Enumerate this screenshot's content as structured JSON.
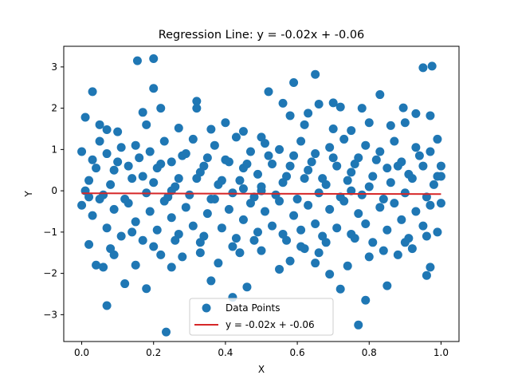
{
  "chart_data": {
    "type": "scatter",
    "title": "Regression Line: y = -0.02x + -0.06",
    "xlabel": "X",
    "ylabel": "Y",
    "xlim": [
      -0.05,
      1.05
    ],
    "ylim": [
      -3.65,
      3.5
    ],
    "xticks": [
      0.0,
      0.2,
      0.4,
      0.6,
      0.8,
      1.0
    ],
    "xtick_labels": [
      "0.0",
      "0.2",
      "0.4",
      "0.6",
      "0.8",
      "1.0"
    ],
    "yticks": [
      -3,
      -2,
      -1,
      0,
      1,
      2,
      3
    ],
    "ytick_labels": [
      "−3",
      "−2",
      "−1",
      "0",
      "1",
      "2",
      "3"
    ],
    "legend": {
      "placement": "lower-center",
      "entries": [
        "Data Points",
        "y = -0.02x + -0.06"
      ]
    },
    "grid": false,
    "series": [
      {
        "name": "Data Points",
        "kind": "scatter",
        "color": "#1f77b4",
        "points": [
          [
            0.155,
            3.15
          ],
          [
            0.2,
            3.2
          ],
          [
            0.03,
            2.4
          ],
          [
            0.2,
            2.48
          ],
          [
            0.32,
            2.17
          ],
          [
            0.65,
            2.82
          ],
          [
            0.95,
            2.98
          ],
          [
            0.975,
            3.02
          ],
          [
            0.52,
            2.4
          ],
          [
            0.56,
            2.12
          ],
          [
            0.59,
            2.62
          ],
          [
            0.7,
            2.13
          ],
          [
            0.78,
            2.0
          ],
          [
            0.83,
            2.33
          ],
          [
            0.895,
            2.01
          ],
          [
            0.72,
            2.03
          ],
          [
            0.01,
            1.78
          ],
          [
            0.05,
            1.6
          ],
          [
            0.07,
            1.48
          ],
          [
            0.1,
            1.43
          ],
          [
            0.17,
            1.9
          ],
          [
            0.18,
            1.6
          ],
          [
            0.22,
            2.0
          ],
          [
            0.27,
            1.52
          ],
          [
            0.32,
            2.0
          ],
          [
            0.36,
            1.49
          ],
          [
            0.4,
            1.65
          ],
          [
            0.45,
            1.44
          ],
          [
            0.5,
            1.3
          ],
          [
            0.58,
            1.82
          ],
          [
            0.62,
            1.6
          ],
          [
            0.66,
            2.1
          ],
          [
            0.7,
            1.5
          ],
          [
            0.75,
            1.46
          ],
          [
            0.8,
            1.65
          ],
          [
            0.86,
            1.58
          ],
          [
            0.9,
            1.65
          ],
          [
            0.93,
            1.87
          ],
          [
            0.97,
            1.82
          ],
          [
            0.63,
            1.88
          ],
          [
            0.235,
            -3.42
          ],
          [
            0.77,
            -3.25
          ],
          [
            0.07,
            -2.78
          ],
          [
            0.79,
            -2.65
          ],
          [
            0.42,
            -2.58
          ],
          [
            0.12,
            -2.25
          ],
          [
            0.18,
            -2.37
          ],
          [
            0.36,
            -2.18
          ],
          [
            0.46,
            -2.33
          ],
          [
            0.72,
            -2.38
          ],
          [
            0.85,
            -2.3
          ],
          [
            0.96,
            -2.05
          ],
          [
            0.69,
            -2.02
          ],
          [
            0.55,
            -1.9
          ],
          [
            0.02,
            -1.3
          ],
          [
            0.04,
            -1.8
          ],
          [
            0.06,
            -1.85
          ],
          [
            0.09,
            -1.55
          ],
          [
            0.15,
            -1.8
          ],
          [
            0.22,
            -1.55
          ],
          [
            0.25,
            -1.85
          ],
          [
            0.28,
            -1.6
          ],
          [
            0.33,
            -1.5
          ],
          [
            0.38,
            -1.75
          ],
          [
            0.44,
            -1.5
          ],
          [
            0.5,
            -1.45
          ],
          [
            0.58,
            -1.7
          ],
          [
            0.61,
            -1.35
          ],
          [
            0.66,
            -1.5
          ],
          [
            0.74,
            -1.82
          ],
          [
            0.8,
            -1.6
          ],
          [
            0.88,
            -1.55
          ],
          [
            0.92,
            -1.4
          ],
          [
            0.97,
            -1.85
          ],
          [
            0.65,
            -1.75
          ],
          [
            0.0,
            0.95
          ],
          [
            0.03,
            0.75
          ],
          [
            0.05,
            1.2
          ],
          [
            0.07,
            0.9
          ],
          [
            0.09,
            0.5
          ],
          [
            0.11,
            1.05
          ],
          [
            0.13,
            0.6
          ],
          [
            0.15,
            1.1
          ],
          [
            0.17,
            0.35
          ],
          [
            0.19,
            0.95
          ],
          [
            0.21,
            0.55
          ],
          [
            0.23,
            1.2
          ],
          [
            0.25,
            0.7
          ],
          [
            0.27,
            0.3
          ],
          [
            0.29,
            0.9
          ],
          [
            0.31,
            1.25
          ],
          [
            0.33,
            0.45
          ],
          [
            0.35,
            0.8
          ],
          [
            0.37,
            1.1
          ],
          [
            0.39,
            0.25
          ],
          [
            0.41,
            0.7
          ],
          [
            0.43,
            1.3
          ],
          [
            0.45,
            0.55
          ],
          [
            0.47,
            0.95
          ],
          [
            0.49,
            0.4
          ],
          [
            0.51,
            1.15
          ],
          [
            0.53,
            0.65
          ],
          [
            0.55,
            1.0
          ],
          [
            0.57,
            0.35
          ],
          [
            0.59,
            0.85
          ],
          [
            0.61,
            1.2
          ],
          [
            0.63,
            0.5
          ],
          [
            0.65,
            0.9
          ],
          [
            0.67,
            0.3
          ],
          [
            0.69,
            1.05
          ],
          [
            0.71,
            0.6
          ],
          [
            0.73,
            1.25
          ],
          [
            0.75,
            0.45
          ],
          [
            0.77,
            0.8
          ],
          [
            0.79,
            1.1
          ],
          [
            0.81,
            0.35
          ],
          [
            0.83,
            0.95
          ],
          [
            0.85,
            0.55
          ],
          [
            0.87,
            1.2
          ],
          [
            0.89,
            0.7
          ],
          [
            0.91,
            0.4
          ],
          [
            0.93,
            1.05
          ],
          [
            0.95,
            0.6
          ],
          [
            0.97,
            0.95
          ],
          [
            0.99,
            0.35
          ],
          [
            0.02,
            0.25
          ],
          [
            0.08,
            0.15
          ],
          [
            0.14,
            0.3
          ],
          [
            0.2,
            0.2
          ],
          [
            0.26,
            0.1
          ],
          [
            0.32,
            0.3
          ],
          [
            0.38,
            0.15
          ],
          [
            0.44,
            0.25
          ],
          [
            0.5,
            0.1
          ],
          [
            0.56,
            0.2
          ],
          [
            0.62,
            0.3
          ],
          [
            0.68,
            0.15
          ],
          [
            0.74,
            0.25
          ],
          [
            0.8,
            0.1
          ],
          [
            0.86,
            0.2
          ],
          [
            0.92,
            0.3
          ],
          [
            0.98,
            0.15
          ],
          [
            0.04,
            0.55
          ],
          [
            0.1,
            0.7
          ],
          [
            0.16,
            0.8
          ],
          [
            0.22,
            0.65
          ],
          [
            0.28,
            0.85
          ],
          [
            0.34,
            0.6
          ],
          [
            0.4,
            0.75
          ],
          [
            0.46,
            0.65
          ],
          [
            0.52,
            0.85
          ],
          [
            0.58,
            0.6
          ],
          [
            0.64,
            0.7
          ],
          [
            0.7,
            0.8
          ],
          [
            0.76,
            0.65
          ],
          [
            0.82,
            0.75
          ],
          [
            0.88,
            0.6
          ],
          [
            0.94,
            0.85
          ],
          [
            0.0,
            -0.35
          ],
          [
            0.03,
            -0.6
          ],
          [
            0.05,
            -0.2
          ],
          [
            0.07,
            -0.9
          ],
          [
            0.09,
            -0.45
          ],
          [
            0.11,
            -1.1
          ],
          [
            0.13,
            -0.3
          ],
          [
            0.15,
            -0.75
          ],
          [
            0.17,
            -1.2
          ],
          [
            0.19,
            -0.5
          ],
          [
            0.21,
            -0.95
          ],
          [
            0.23,
            -0.25
          ],
          [
            0.25,
            -0.65
          ],
          [
            0.27,
            -1.05
          ],
          [
            0.29,
            -0.4
          ],
          [
            0.31,
            -0.85
          ],
          [
            0.33,
            -1.25
          ],
          [
            0.35,
            -0.55
          ],
          [
            0.37,
            -0.2
          ],
          [
            0.39,
            -0.9
          ],
          [
            0.41,
            -0.45
          ],
          [
            0.43,
            -1.15
          ],
          [
            0.45,
            -0.7
          ],
          [
            0.47,
            -0.3
          ],
          [
            0.49,
            -1.0
          ],
          [
            0.51,
            -0.5
          ],
          [
            0.53,
            -0.85
          ],
          [
            0.55,
            -0.25
          ],
          [
            0.57,
            -1.2
          ],
          [
            0.59,
            -0.6
          ],
          [
            0.61,
            -0.95
          ],
          [
            0.63,
            -0.35
          ],
          [
            0.65,
            -0.8
          ],
          [
            0.67,
            -1.1
          ],
          [
            0.69,
            -0.45
          ],
          [
            0.71,
            -0.9
          ],
          [
            0.73,
            -0.25
          ],
          [
            0.75,
            -1.05
          ],
          [
            0.77,
            -0.55
          ],
          [
            0.79,
            -0.8
          ],
          [
            0.81,
            -1.25
          ],
          [
            0.83,
            -0.4
          ],
          [
            0.85,
            -0.95
          ],
          [
            0.87,
            -0.3
          ],
          [
            0.89,
            -0.7
          ],
          [
            0.91,
            -1.15
          ],
          [
            0.93,
            -0.5
          ],
          [
            0.95,
            -0.85
          ],
          [
            0.97,
            -0.35
          ],
          [
            0.99,
            -1.0
          ],
          [
            0.02,
            -0.15
          ],
          [
            0.06,
            -0.1
          ],
          [
            0.12,
            -0.2
          ],
          [
            0.18,
            -0.05
          ],
          [
            0.24,
            -0.15
          ],
          [
            0.3,
            -0.1
          ],
          [
            0.36,
            -0.2
          ],
          [
            0.42,
            -0.05
          ],
          [
            0.48,
            -0.15
          ],
          [
            0.54,
            -0.1
          ],
          [
            0.6,
            -0.2
          ],
          [
            0.66,
            -0.05
          ],
          [
            0.72,
            -0.15
          ],
          [
            0.78,
            -0.1
          ],
          [
            0.84,
            -0.2
          ],
          [
            0.9,
            -0.05
          ],
          [
            0.96,
            -0.15
          ],
          [
            1.0,
            -0.3
          ],
          [
            1.0,
            0.35
          ],
          [
            1.0,
            0.6
          ],
          [
            0.99,
            1.25
          ],
          [
            0.01,
            0.0
          ],
          [
            0.5,
            0.0
          ],
          [
            0.25,
            0.0
          ],
          [
            0.75,
            0.0
          ],
          [
            0.45,
            0.05
          ],
          [
            0.08,
            -1.4
          ],
          [
            0.14,
            -1.0
          ],
          [
            0.2,
            -1.35
          ],
          [
            0.26,
            -1.2
          ],
          [
            0.34,
            -1.1
          ],
          [
            0.42,
            -1.35
          ],
          [
            0.48,
            -1.2
          ],
          [
            0.56,
            -1.05
          ],
          [
            0.62,
            -1.4
          ],
          [
            0.68,
            -1.25
          ],
          [
            0.76,
            -1.15
          ],
          [
            0.84,
            -1.45
          ],
          [
            0.9,
            -1.25
          ],
          [
            0.96,
            -1.1
          ]
        ]
      },
      {
        "name": "y = -0.02x + -0.06",
        "kind": "line",
        "color": "#d62728",
        "x": [
          0.0,
          1.0
        ],
        "y": [
          -0.06,
          -0.08
        ]
      }
    ]
  }
}
